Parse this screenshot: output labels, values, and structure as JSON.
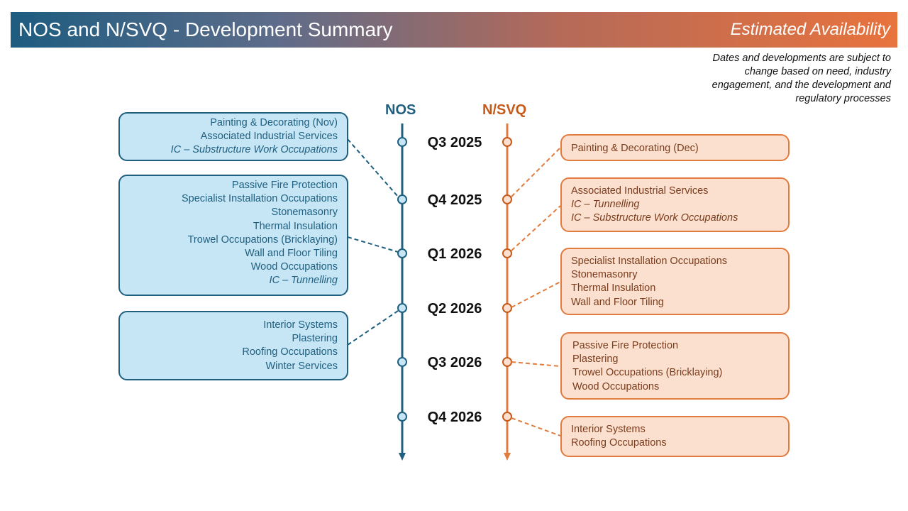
{
  "header": {
    "title": "NOS and N/SVQ - Development Summary",
    "subtitle": "Estimated Availability"
  },
  "disclaimer": {
    "lines": [
      "Dates and developments are subject to",
      "change based on need, industry",
      "engagement, and the development and",
      "regulatory processes"
    ]
  },
  "columns": {
    "nos": {
      "label": "NOS",
      "color": "#1f5f7f"
    },
    "svq": {
      "label": "N/SVQ",
      "color": "#e27b3e"
    }
  },
  "quarters": [
    "Q3 2025",
    "Q4 2025",
    "Q1 2026",
    "Q2 2026",
    "Q3 2026",
    "Q4 2026"
  ],
  "nos_groups": [
    {
      "quarter": "Q4 2025",
      "items": [
        {
          "text": "Painting & Decorating (Nov)",
          "italic": false
        },
        {
          "text": "Associated Industrial Services",
          "italic": false
        },
        {
          "text": "IC – Substructure Work Occupations",
          "italic": true
        }
      ]
    },
    {
      "quarter": "Q1 2026",
      "items": [
        {
          "text": "Passive Fire Protection",
          "italic": false
        },
        {
          "text": "Specialist Installation Occupations",
          "italic": false
        },
        {
          "text": "Stonemasonry",
          "italic": false
        },
        {
          "text": "Thermal Insulation",
          "italic": false
        },
        {
          "text": "Trowel Occupations (Bricklaying)",
          "italic": false
        },
        {
          "text": "Wall and Floor Tiling",
          "italic": false
        },
        {
          "text": "Wood Occupations",
          "italic": false
        },
        {
          "text": "IC – Tunnelling",
          "italic": true
        }
      ]
    },
    {
      "quarter": "Q2 2026",
      "items": [
        {
          "text": "Interior Systems",
          "italic": false
        },
        {
          "text": "Plastering",
          "italic": false
        },
        {
          "text": "Roofing Occupations",
          "italic": false
        },
        {
          "text": "Winter Services",
          "italic": false
        }
      ]
    }
  ],
  "svq_groups": [
    {
      "quarter": "Q4 2025",
      "items": [
        {
          "text": "Painting & Decorating (Dec)",
          "italic": false
        }
      ]
    },
    {
      "quarter": "Q1 2026",
      "items": [
        {
          "text": "Associated Industrial Services",
          "italic": false
        },
        {
          "text": "IC – Tunnelling",
          "italic": true
        },
        {
          "text": "IC – Substructure Work Occupations",
          "italic": true
        }
      ]
    },
    {
      "quarter": "Q2 2026",
      "items": [
        {
          "text": "Specialist Installation Occupations",
          "italic": false
        },
        {
          "text": "Stonemasonry",
          "italic": false
        },
        {
          "text": "Thermal Insulation",
          "italic": false
        },
        {
          "text": "Wall and Floor Tiling",
          "italic": false
        }
      ]
    },
    {
      "quarter": "Q3 2026",
      "items": [
        {
          "text": "Passive Fire Protection",
          "italic": false
        },
        {
          "text": "Plastering",
          "italic": false
        },
        {
          "text": "Trowel Occupations (Bricklaying)",
          "italic": false
        },
        {
          "text": "Wood Occupations",
          "italic": false
        }
      ]
    },
    {
      "quarter": "Q4 2026",
      "items": [
        {
          "text": "Interior Systems",
          "italic": false
        },
        {
          "text": "Roofing Occupations",
          "italic": false
        }
      ]
    }
  ]
}
